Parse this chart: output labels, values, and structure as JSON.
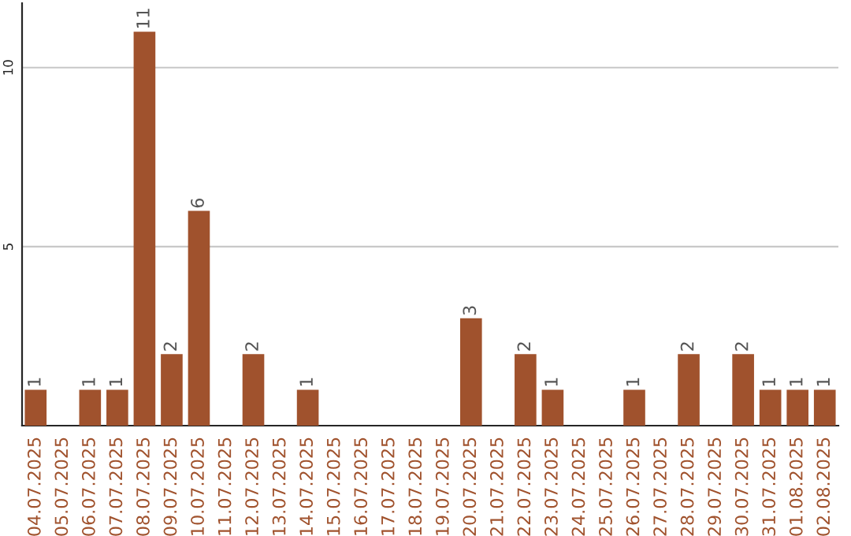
{
  "chart_data": {
    "type": "bar",
    "categories": [
      "04.07.2025",
      "05.07.2025",
      "06.07.2025",
      "07.07.2025",
      "08.07.2025",
      "09.07.2025",
      "10.07.2025",
      "11.07.2025",
      "12.07.2025",
      "13.07.2025",
      "14.07.2025",
      "15.07.2025",
      "16.07.2025",
      "17.07.2025",
      "18.07.2025",
      "19.07.2025",
      "20.07.2025",
      "21.07.2025",
      "22.07.2025",
      "23.07.2025",
      "24.07.2025",
      "25.07.2025",
      "26.07.2025",
      "27.07.2025",
      "28.07.2025",
      "29.07.2025",
      "30.07.2025",
      "31.07.2025",
      "01.08.2025",
      "02.08.2025"
    ],
    "values": [
      1,
      0,
      1,
      1,
      11,
      2,
      6,
      0,
      2,
      0,
      1,
      0,
      0,
      0,
      0,
      0,
      3,
      0,
      2,
      1,
      0,
      0,
      1,
      0,
      2,
      0,
      2,
      1,
      1,
      1
    ],
    "value_labels": [
      "1",
      null,
      "1",
      "1",
      "11",
      "2",
      "6",
      null,
      "2",
      null,
      "1",
      null,
      null,
      null,
      null,
      null,
      "3",
      null,
      "2",
      "1",
      null,
      null,
      "1",
      null,
      "2",
      null,
      "2",
      "1",
      "1",
      "1"
    ],
    "color": "#a0522d",
    "ylim": [
      0,
      11.8
    ],
    "yticks": [
      5,
      10
    ],
    "grid": "y"
  }
}
